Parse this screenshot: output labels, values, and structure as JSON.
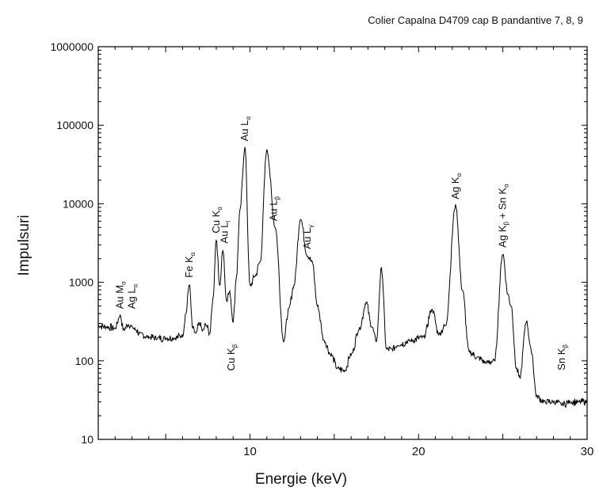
{
  "chart_data": {
    "type": "line",
    "title": "Colier Capalna D4709 cap B pandantive 7, 8, 9",
    "xlabel": "Energie (keV)",
    "ylabel": "Impulsuri",
    "xlim": [
      1,
      30
    ],
    "ylim": [
      10,
      1000000
    ],
    "yscale": "log",
    "x_ticks": [
      10,
      20,
      30
    ],
    "y_ticks": [
      "10",
      "100",
      "1000",
      "10000",
      "100000",
      "1000000"
    ],
    "grid": false,
    "series": [
      {
        "x": [
          1.0,
          1.5,
          2.0,
          2.3,
          2.5,
          2.8,
          3.0,
          3.2,
          3.5,
          4.0,
          4.5,
          5.0,
          5.5,
          6.0,
          6.2,
          6.4,
          6.6,
          6.8,
          7.0,
          7.2,
          7.4,
          7.6,
          7.8,
          8.0,
          8.2,
          8.4,
          8.6,
          8.8,
          9.0,
          9.2,
          9.4,
          9.7,
          10.0,
          10.3,
          10.6,
          11.0,
          11.5,
          12.0,
          12.3,
          12.6,
          13.0,
          13.4,
          13.7,
          14.0,
          14.4,
          14.8,
          15.2,
          15.6,
          16.0,
          16.5,
          16.9,
          17.2,
          17.5,
          17.8,
          18.1,
          18.4,
          18.8,
          19.5,
          20.3,
          20.8,
          21.2,
          21.6,
          22.2,
          22.6,
          23.0,
          23.5,
          24.0,
          24.5,
          25.0,
          25.3,
          25.5,
          25.8,
          26.0,
          26.4,
          26.7,
          27.0,
          27.5,
          28.0,
          28.5,
          29.0,
          29.5,
          30.0
        ],
        "y": [
          280,
          270,
          260,
          380,
          250,
          290,
          270,
          250,
          220,
          200,
          195,
          195,
          195,
          210,
          400,
          950,
          260,
          220,
          300,
          240,
          290,
          220,
          600,
          3500,
          900,
          2600,
          600,
          750,
          320,
          1200,
          8000,
          52000,
          900,
          1200,
          1800,
          48000,
          5000,
          180,
          450,
          900,
          6500,
          2200,
          1800,
          500,
          180,
          120,
          80,
          75,
          120,
          260,
          560,
          280,
          180,
          1500,
          140,
          140,
          160,
          180,
          200,
          450,
          220,
          280,
          9500,
          800,
          130,
          110,
          95,
          100,
          2300,
          700,
          500,
          80,
          60,
          320,
          130,
          35,
          30,
          30,
          28,
          30,
          30,
          30
        ]
      }
    ],
    "annotations": [
      {
        "label": "Au M",
        "sub": "α",
        "x": 2.3
      },
      {
        "label": "Ag L",
        "sub": "α",
        "x": 3.0
      },
      {
        "label": "Fe K",
        "sub": "α",
        "x": 6.4
      },
      {
        "label": "Cu K",
        "sub": "α",
        "x": 8.0
      },
      {
        "label": "Au L",
        "sub": "l",
        "x": 8.5
      },
      {
        "label": "Cu K",
        "sub": "β",
        "x": 8.9
      },
      {
        "label": "Au L",
        "sub": "α",
        "x": 9.7
      },
      {
        "label": "Au L",
        "sub": "β",
        "x": 11.4
      },
      {
        "label": "Au L",
        "sub": "γ",
        "x": 13.4
      },
      {
        "label": "Ag K",
        "sub": "α",
        "x": 22.2
      },
      {
        "label": "Ag K",
        "sub": "β",
        "suffix": " + Sn K",
        "sub2": "α",
        "x": 25.0
      },
      {
        "label": "Sn K",
        "sub": "β",
        "x": 28.5
      }
    ]
  }
}
